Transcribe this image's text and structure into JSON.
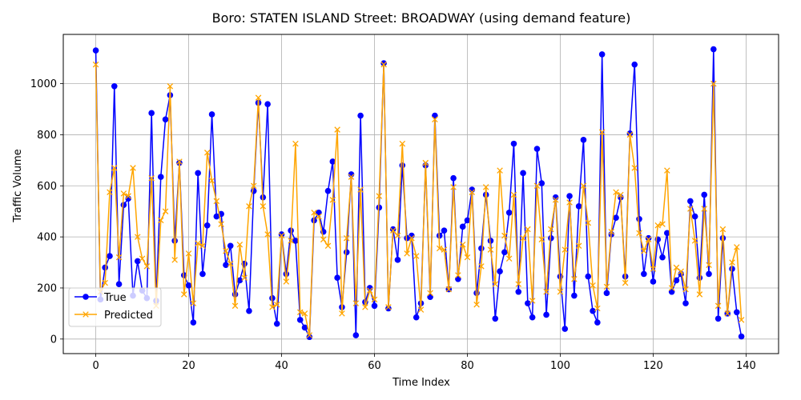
{
  "chart_data": {
    "type": "line",
    "title": "Boro: STATEN ISLAND Street: BROADWAY (using demand feature)",
    "xlabel": "Time Index",
    "ylabel": "Traffic Volume",
    "xlim": [
      -7,
      147
    ],
    "ylim": [
      -57,
      1193
    ],
    "xticks": [
      0,
      20,
      40,
      60,
      80,
      100,
      120,
      140
    ],
    "yticks": [
      0,
      200,
      400,
      600,
      800,
      1000
    ],
    "grid": true,
    "legend_position": "lower-left",
    "series": [
      {
        "name": "True",
        "color": "#0000ff",
        "marker": "circle",
        "values": [
          1130,
          155,
          280,
          325,
          990,
          215,
          525,
          550,
          170,
          305,
          190,
          160,
          885,
          150,
          635,
          860,
          955,
          385,
          690,
          250,
          210,
          65,
          650,
          255,
          445,
          880,
          480,
          490,
          290,
          365,
          175,
          230,
          295,
          110,
          580,
          925,
          555,
          920,
          160,
          60,
          410,
          255,
          425,
          385,
          75,
          45,
          8,
          465,
          495,
          420,
          580,
          695,
          240,
          125,
          340,
          645,
          15,
          875,
          145,
          200,
          130,
          515,
          1080,
          120,
          430,
          310,
          680,
          395,
          405,
          85,
          140,
          680,
          165,
          875,
          405,
          425,
          195,
          630,
          235,
          440,
          465,
          585,
          180,
          355,
          565,
          385,
          80,
          265,
          340,
          495,
          765,
          185,
          650,
          140,
          85,
          745,
          610,
          95,
          395,
          555,
          245,
          40,
          560,
          170,
          520,
          780,
          245,
          110,
          65,
          1115,
          180,
          410,
          475,
          555,
          245,
          805,
          1075,
          470,
          255,
          395,
          225,
          390,
          320,
          415,
          185,
          230,
          255,
          140,
          540,
          480,
          240,
          565,
          255,
          1135,
          80,
          395,
          100,
          275,
          105,
          10
        ]
      },
      {
        "name": "Predicted",
        "color": "#ffa500",
        "marker": "x",
        "values": [
          1075,
          185,
          220,
          575,
          670,
          320,
          570,
          560,
          670,
          400,
          315,
          285,
          630,
          130,
          465,
          500,
          990,
          310,
          695,
          175,
          335,
          140,
          375,
          365,
          730,
          620,
          540,
          450,
          345,
          295,
          130,
          370,
          240,
          520,
          600,
          945,
          520,
          410,
          125,
          135,
          405,
          225,
          385,
          765,
          105,
          100,
          15,
          495,
          480,
          390,
          365,
          545,
          820,
          100,
          395,
          635,
          140,
          585,
          125,
          190,
          155,
          560,
          1075,
          125,
          425,
          405,
          765,
          335,
          395,
          325,
          115,
          690,
          180,
          860,
          355,
          350,
          195,
          595,
          250,
          370,
          320,
          575,
          135,
          285,
          595,
          350,
          215,
          660,
          405,
          315,
          565,
          215,
          395,
          430,
          150,
          600,
          390,
          185,
          430,
          545,
          185,
          350,
          535,
          235,
          365,
          600,
          455,
          210,
          120,
          810,
          205,
          420,
          575,
          565,
          220,
          800,
          670,
          415,
          345,
          390,
          275,
          445,
          450,
          660,
          200,
          280,
          265,
          195,
          510,
          385,
          175,
          510,
          290,
          1000,
          130,
          430,
          100,
          300,
          360,
          75
        ]
      }
    ]
  }
}
